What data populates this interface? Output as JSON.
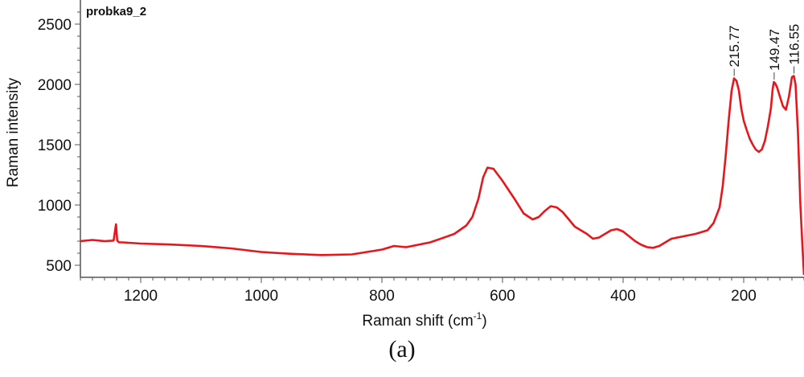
{
  "chart_data": {
    "type": "line",
    "sample_label": "probka9_2",
    "xlabel_main": "Raman shift (cm",
    "xlabel_sup": "-1",
    "xlabel_end": ")",
    "ylabel": "Raman intensity",
    "xlim": [
      1300,
      100
    ],
    "ylim": [
      400,
      2700
    ],
    "x_ticks": [
      1200,
      1000,
      800,
      600,
      400,
      200
    ],
    "y_ticks": [
      500,
      1000,
      1500,
      2000,
      2500
    ],
    "grid": false,
    "series": [
      {
        "color": "#e8161c",
        "x": [
          1300,
          1280,
          1260,
          1245,
          1241,
          1239,
          1236,
          1230,
          1200,
          1150,
          1100,
          1050,
          1000,
          950,
          900,
          850,
          800,
          780,
          760,
          720,
          700,
          680,
          660,
          650,
          640,
          632,
          625,
          615,
          600,
          580,
          565,
          550,
          540,
          530,
          520,
          510,
          500,
          490,
          480,
          470,
          460,
          450,
          440,
          430,
          420,
          410,
          400,
          390,
          380,
          370,
          360,
          350,
          340,
          330,
          320,
          300,
          280,
          260,
          250,
          240,
          235,
          230,
          225,
          220,
          216,
          212,
          208,
          204,
          200,
          195,
          190,
          185,
          180,
          175,
          170,
          165,
          160,
          155,
          152,
          150,
          148,
          145,
          140,
          135,
          130,
          125,
          120,
          117,
          114,
          110,
          106,
          102,
          100
        ],
        "y": [
          700,
          710,
          700,
          705,
          840,
          705,
          690,
          690,
          680,
          672,
          660,
          640,
          610,
          595,
          585,
          590,
          630,
          660,
          650,
          690,
          725,
          760,
          830,
          900,
          1050,
          1230,
          1310,
          1300,
          1200,
          1050,
          930,
          880,
          900,
          950,
          990,
          980,
          940,
          880,
          820,
          790,
          760,
          720,
          730,
          760,
          790,
          800,
          780,
          740,
          700,
          670,
          650,
          645,
          660,
          690,
          720,
          740,
          760,
          790,
          850,
          980,
          1150,
          1400,
          1700,
          1950,
          2050,
          2030,
          1950,
          1800,
          1700,
          1620,
          1550,
          1500,
          1460,
          1440,
          1460,
          1530,
          1650,
          1800,
          1960,
          2020,
          2010,
          1980,
          1900,
          1820,
          1790,
          1900,
          2060,
          2070,
          2000,
          1600,
          1000,
          600,
          420
        ]
      }
    ],
    "peak_labels": [
      {
        "x": 215.77,
        "y": 2050,
        "label": "215.77"
      },
      {
        "x": 149.47,
        "y": 2020,
        "label": "149.47"
      },
      {
        "x": 116.55,
        "y": 2070,
        "label": "116.55"
      }
    ]
  },
  "caption": "(a)"
}
